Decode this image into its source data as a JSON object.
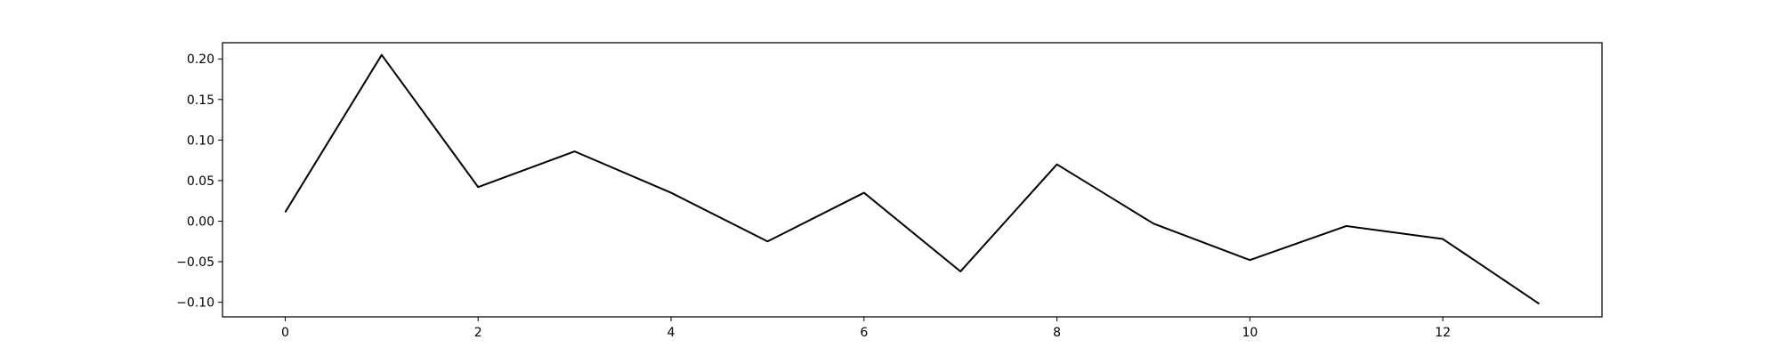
{
  "chart_data": {
    "type": "line",
    "title": "",
    "xlabel": "",
    "ylabel": "",
    "xlim": [
      -0.65,
      13.65
    ],
    "ylim": [
      -0.118,
      0.22
    ],
    "grid": false,
    "x_ticks": [
      0,
      2,
      4,
      6,
      8,
      10,
      12
    ],
    "x_tick_labels": [
      "0",
      "2",
      "4",
      "6",
      "8",
      "10",
      "12"
    ],
    "y_ticks": [
      -0.1,
      -0.05,
      0.0,
      0.05,
      0.1,
      0.15,
      0.2
    ],
    "y_tick_labels": [
      "−0.10",
      "−0.05",
      "0.00",
      "0.05",
      "0.10",
      "0.15",
      "0.20"
    ],
    "series": [
      {
        "color": "#000000",
        "x": [
          0,
          1,
          2,
          3,
          4,
          5,
          6,
          7,
          8,
          9,
          10,
          11,
          12,
          13
        ],
        "y": [
          0.011,
          0.205,
          0.042,
          0.086,
          0.035,
          -0.025,
          0.035,
          -0.062,
          0.07,
          -0.003,
          -0.048,
          -0.006,
          -0.022,
          -0.102
        ]
      }
    ]
  }
}
